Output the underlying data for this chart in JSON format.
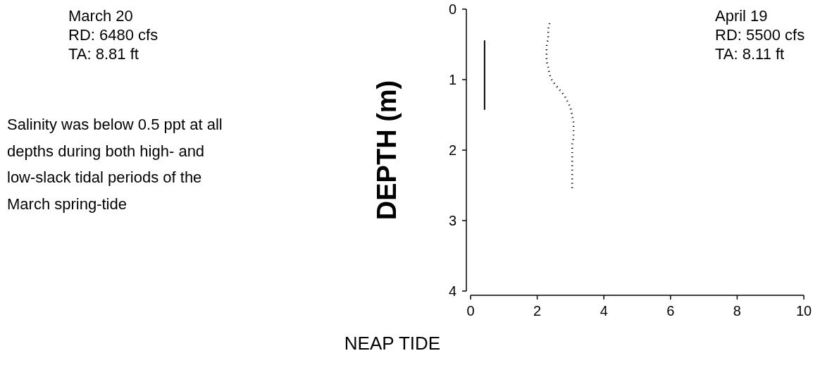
{
  "chart_data": {
    "type": "line",
    "xlabel": "NEAP TIDE",
    "ylabel": "DEPTH (m)",
    "annotations": [
      "March 20\nRD: 6480 cfs\nTA: 8.81 ft",
      "Salinity was below 0.5 ppt at all\ndepths during both high- and\nlow-slack tidal periods of the\nMarch spring-tide",
      "April 19\nRD: 5500 cfs\nTA: 8.11 ft"
    ],
    "xlim": [
      0,
      10
    ],
    "xticks": [
      0,
      2,
      4,
      6,
      8,
      10
    ],
    "ylim": [
      4,
      0
    ],
    "yticks": [
      0,
      1,
      2,
      3,
      4
    ],
    "grid": false,
    "series": [
      {
        "color": "#000000",
        "line_style": "solid",
        "x": [
          0.42,
          0.42
        ],
        "values": [
          0.45,
          1.42
        ]
      },
      {
        "color": "#000000",
        "line_style": "dotted",
        "x": [
          2.37,
          2.33,
          2.33,
          2.29,
          2.28,
          2.28,
          2.33,
          2.37,
          2.46,
          2.63,
          2.8,
          2.92,
          3.01,
          3.05,
          3.09,
          3.09,
          3.09,
          3.05,
          3.05,
          3.05,
          3.05,
          3.05,
          3.05,
          3.05,
          3.05,
          3.05,
          3.05
        ],
        "values": [
          0.2,
          0.3,
          0.4,
          0.5,
          0.6,
          0.72,
          0.82,
          0.92,
          1.02,
          1.12,
          1.22,
          1.32,
          1.42,
          1.52,
          1.62,
          1.72,
          1.82,
          1.92,
          2.02,
          2.14,
          2.2,
          2.24,
          2.3,
          2.34,
          2.4,
          2.44,
          2.54
        ]
      }
    ]
  }
}
